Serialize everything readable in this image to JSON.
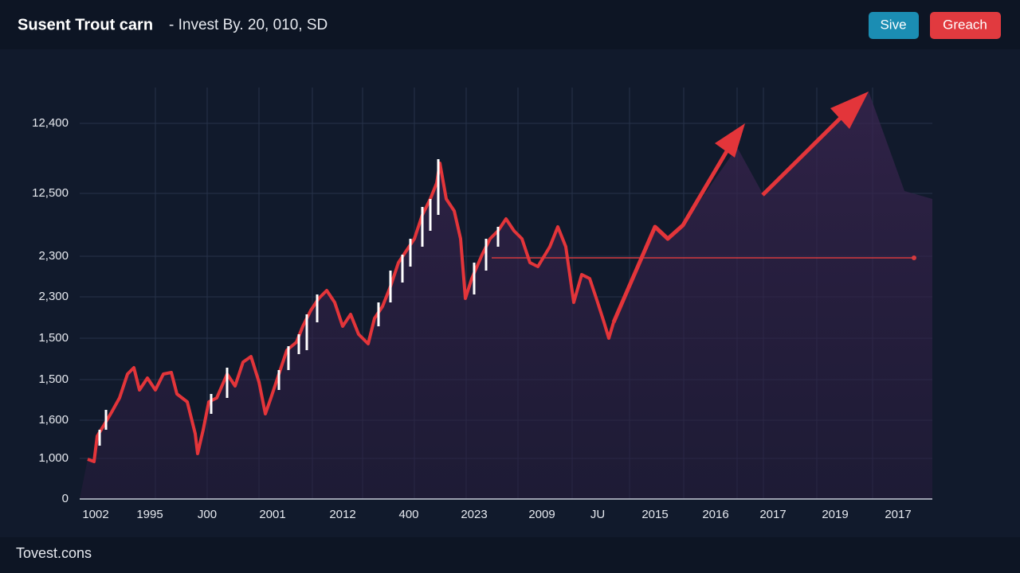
{
  "header": {
    "title": "Susent Trout carn",
    "subtitle": "- Invest By. 20, 010, SD"
  },
  "buttons": [
    "Sive",
    "Greach"
  ],
  "y_labels": [
    "12,400",
    "12,500",
    "2,300",
    "2,300",
    "1,500",
    "1,500",
    "1,600",
    "1,000",
    "0"
  ],
  "x_labels": [
    "1002",
    "1995",
    "J00",
    "2001",
    "2012",
    "400",
    "2023",
    "2009",
    "JU",
    "2015",
    "2016",
    "2017",
    "2019",
    "2017"
  ],
  "footer": "Tovest.cons"
}
